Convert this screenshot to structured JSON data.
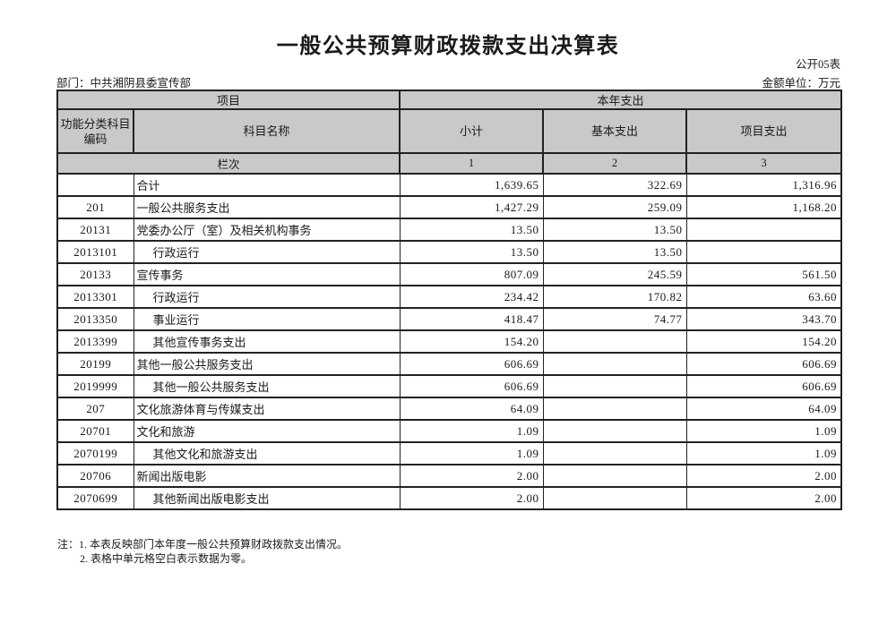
{
  "page": {
    "title": "一般公共预算财政拨款支出决算表",
    "form_code": "公开05表",
    "department": "部门：中共湘阴县委宣传部",
    "unit": "金额单位：万元"
  },
  "table": {
    "header": {
      "project_group": "项目",
      "year_group": "本年支出",
      "code_line1": "功能分类科目",
      "code_line2": "编码",
      "subject_name": "科目名称",
      "subtotal": "小计",
      "basic": "基本支出",
      "project": "项目支出",
      "lanci": "栏次",
      "col_nums": [
        "1",
        "2",
        "3"
      ]
    },
    "rows": [
      {
        "code": "",
        "name": "合计",
        "indent": false,
        "subtotal": "1,639.65",
        "basic": "322.69",
        "project": "1,316.96"
      },
      {
        "code": "201",
        "name": "一般公共服务支出",
        "indent": false,
        "subtotal": "1,427.29",
        "basic": "259.09",
        "project": "1,168.20"
      },
      {
        "code": "20131",
        "name": "党委办公厅（室）及相关机构事务",
        "indent": false,
        "subtotal": "13.50",
        "basic": "13.50",
        "project": ""
      },
      {
        "code": "2013101",
        "name": "行政运行",
        "indent": true,
        "subtotal": "13.50",
        "basic": "13.50",
        "project": ""
      },
      {
        "code": "20133",
        "name": "宣传事务",
        "indent": false,
        "subtotal": "807.09",
        "basic": "245.59",
        "project": "561.50"
      },
      {
        "code": "2013301",
        "name": "行政运行",
        "indent": true,
        "subtotal": "234.42",
        "basic": "170.82",
        "project": "63.60"
      },
      {
        "code": "2013350",
        "name": "事业运行",
        "indent": true,
        "subtotal": "418.47",
        "basic": "74.77",
        "project": "343.70"
      },
      {
        "code": "2013399",
        "name": "其他宣传事务支出",
        "indent": true,
        "subtotal": "154.20",
        "basic": "",
        "project": "154.20"
      },
      {
        "code": "20199",
        "name": "其他一般公共服务支出",
        "indent": false,
        "subtotal": "606.69",
        "basic": "",
        "project": "606.69"
      },
      {
        "code": "2019999",
        "name": "其他一般公共服务支出",
        "indent": true,
        "subtotal": "606.69",
        "basic": "",
        "project": "606.69"
      },
      {
        "code": "207",
        "name": "文化旅游体育与传媒支出",
        "indent": false,
        "subtotal": "64.09",
        "basic": "",
        "project": "64.09"
      },
      {
        "code": "20701",
        "name": "文化和旅游",
        "indent": false,
        "subtotal": "1.09",
        "basic": "",
        "project": "1.09"
      },
      {
        "code": "2070199",
        "name": "其他文化和旅游支出",
        "indent": true,
        "subtotal": "1.09",
        "basic": "",
        "project": "1.09"
      },
      {
        "code": "20706",
        "name": "新闻出版电影",
        "indent": false,
        "subtotal": "2.00",
        "basic": "",
        "project": "2.00"
      },
      {
        "code": "2070699",
        "name": "其他新闻出版电影支出",
        "indent": true,
        "subtotal": "2.00",
        "basic": "",
        "project": "2.00"
      }
    ]
  },
  "notes": {
    "prefix": "注：",
    "line1": "1. 本表反映部门本年度一般公共预算财政拨款支出情况。",
    "line2": "2. 表格中单元格空白表示数据为零。"
  }
}
